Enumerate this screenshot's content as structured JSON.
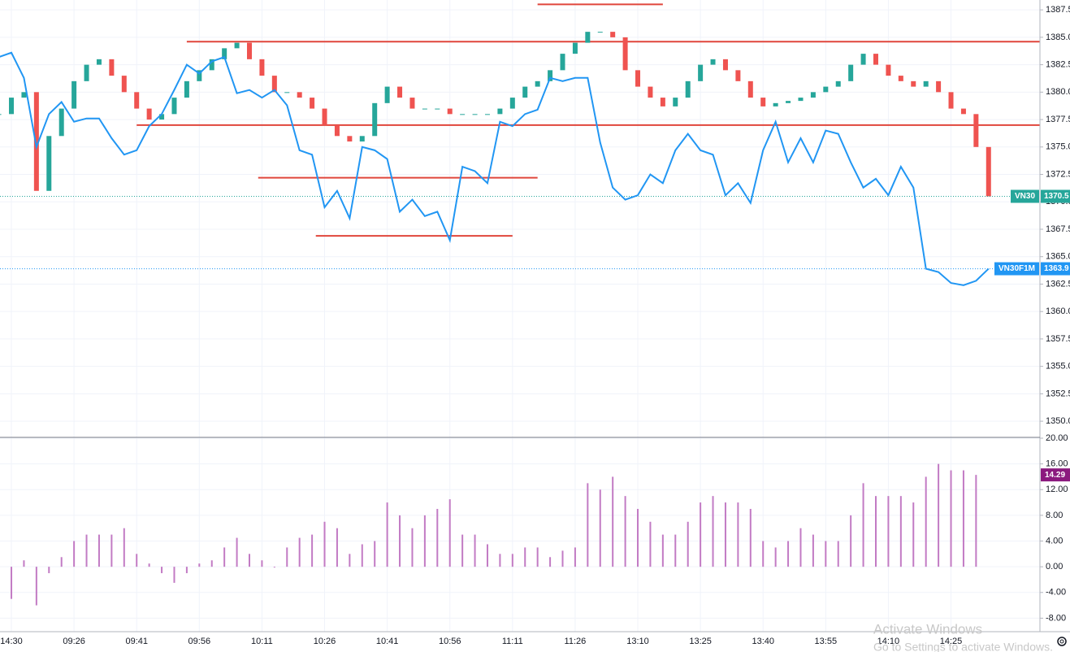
{
  "chart_data": [
    {
      "type": "candlestick",
      "categories": [
        null,
        "14:30",
        null,
        null,
        null,
        null,
        "09:26",
        null,
        null,
        null,
        null,
        "09:41",
        null,
        null,
        null,
        null,
        "09:56",
        null,
        null,
        null,
        null,
        "10:11",
        null,
        null,
        null,
        null,
        "10:26",
        null,
        null,
        null,
        null,
        "10:41",
        null,
        null,
        null,
        null,
        "10:56",
        null,
        null,
        null,
        null,
        "11:11",
        null,
        null,
        null,
        null,
        "11:26",
        null,
        null,
        null,
        null,
        "13:10",
        null,
        null,
        null,
        null,
        "13:25",
        null,
        null,
        null,
        null,
        "13:40",
        null,
        null,
        null,
        null,
        "13:55",
        null,
        null,
        null,
        null,
        "14:10",
        null,
        null,
        null,
        null,
        "14:25",
        null,
        null,
        null
      ],
      "series": [
        {
          "name": "VN30",
          "kind": "candles",
          "up_color": "#26a69a",
          "down_color": "#ef5350",
          "values": [
            1378,
            1379.5,
            1380,
            1371,
            1376,
            1378.5,
            1381,
            1382.5,
            1383,
            1381.5,
            1380,
            1378.5,
            1377.5,
            1378,
            1379.5,
            1381,
            1382,
            1383,
            1384,
            1384.5,
            1383,
            1381.5,
            1380,
            1380,
            1379.5,
            1378.5,
            1377,
            1376,
            1375.5,
            1376,
            1379,
            1380.5,
            1379.5,
            1378.5,
            1378.5,
            1378.5,
            1378,
            1378,
            1378,
            1378,
            1378.5,
            1379.5,
            1380.5,
            1381,
            1382,
            1383.5,
            1384.5,
            1385.5,
            1385.5,
            1385,
            1382,
            1380.5,
            1379.5,
            1378.7,
            1379.5,
            1381,
            1382.5,
            1383,
            1382,
            1381,
            1379.5,
            1378.7,
            1379,
            1379.2,
            1379.5,
            1380,
            1380.5,
            1381,
            1382.5,
            1383.5,
            1382.5,
            1381.5,
            1381,
            1380.5,
            1381,
            1380,
            1378.5,
            1378,
            1375,
            1370.5
          ]
        },
        {
          "name": "VN30F1M",
          "kind": "line",
          "color": "#2196f3",
          "values": [
            1383.2,
            1383.6,
            1381.3,
            1375,
            1378,
            1379.1,
            1377.3,
            1377.6,
            1377.6,
            1375.8,
            1374.3,
            1374.7,
            1376.9,
            1378,
            1380.2,
            1382.5,
            1381.7,
            1382.8,
            1383.2,
            1379.9,
            1380.2,
            1379.5,
            1380.2,
            1378.8,
            1374.7,
            1374.3,
            1369.5,
            1371,
            1368.5,
            1375,
            1374.7,
            1373.9,
            1369.1,
            1370.2,
            1368.7,
            1369.1,
            1366.5,
            1373.2,
            1372.8,
            1371.7,
            1377.3,
            1376.9,
            1378,
            1378.4,
            1381.3,
            1381,
            1381.3,
            1381.3,
            1375.4,
            1371.3,
            1370.2,
            1370.6,
            1372.5,
            1371.7,
            1374.7,
            1376.2,
            1374.7,
            1374.3,
            1370.6,
            1371.7,
            1369.9,
            1374.7,
            1377.3,
            1373.6,
            1375.8,
            1373.6,
            1376.5,
            1376.2,
            1373.6,
            1371.3,
            1372.1,
            1370.6,
            1373.2,
            1371.3,
            1363.9,
            1363.6,
            1362.6,
            1362.4,
            1362.8,
            1363.9
          ]
        }
      ],
      "levels": [
        {
          "value": 1388,
          "from": 43,
          "to": 53,
          "color": "#e0463c"
        },
        {
          "value": 1384.6,
          "from": 15,
          "to": 83.1,
          "color": "#e0463c"
        },
        {
          "value": 1377,
          "from": 11,
          "to": 83.1,
          "color": "#e0463c"
        },
        {
          "value": 1372.2,
          "from": 20.7,
          "to": 43,
          "color": "#e0463c"
        },
        {
          "value": 1366.9,
          "from": 25.3,
          "to": 41,
          "color": "#e0463c"
        }
      ],
      "ylim": [
        1348.6,
        1388.4
      ],
      "yticks": [
        {
          "value": 1350,
          "label": "1350.00"
        },
        {
          "value": 1352.5,
          "label": "1352.50"
        },
        {
          "value": 1355,
          "label": "1355.00"
        },
        {
          "value": 1357.5,
          "label": "1357.50"
        },
        {
          "value": 1360,
          "label": "1360.00"
        },
        {
          "value": 1362.5,
          "label": "1362.50"
        },
        {
          "value": 1365,
          "label": "1365.00"
        },
        {
          "value": 1367.5,
          "label": "1367.50"
        },
        {
          "value": 1370,
          "label": "1370.00"
        },
        {
          "value": 1372.5,
          "label": "1372.50"
        },
        {
          "value": 1375,
          "label": "1375.00"
        },
        {
          "value": 1377.5,
          "label": "1377.50"
        },
        {
          "value": 1380,
          "label": "1380.00"
        },
        {
          "value": 1382.5,
          "label": "1382.50"
        },
        {
          "value": 1385,
          "label": "1385.00"
        },
        {
          "value": 1387.5,
          "label": "1387.50"
        }
      ],
      "grid": true
    },
    {
      "type": "histogram",
      "color": "#c27bc4",
      "tag_color": "#8b1a7e",
      "values": [
        -5,
        -5,
        1,
        -6,
        -1,
        1.5,
        4,
        5,
        5,
        5,
        6,
        2,
        0.5,
        -1,
        -2.5,
        -1,
        0.5,
        1,
        3,
        4.5,
        2,
        1,
        0,
        3,
        4.5,
        5,
        7,
        6,
        2,
        3.5,
        4,
        10,
        8,
        6,
        8,
        9,
        10.5,
        5,
        5,
        3.5,
        2,
        2,
        3,
        3,
        1.5,
        2.5,
        3,
        13,
        12,
        14,
        11,
        9,
        7,
        5,
        5,
        7,
        10,
        11,
        10,
        10,
        9,
        4,
        3,
        4,
        6,
        5,
        4,
        4,
        8,
        13,
        11,
        11,
        11,
        10,
        14,
        16,
        15,
        15,
        14.29,
        null
      ],
      "value_labels": {
        "78": "14.29"
      },
      "ylim": [
        -10.1,
        20
      ],
      "yticks": [
        {
          "value": -8,
          "label": "-8.00"
        },
        {
          "value": -4,
          "label": "-4.00"
        },
        {
          "value": 0,
          "label": "0.00"
        },
        {
          "value": 4,
          "label": "4.00"
        },
        {
          "value": 8,
          "label": "8.00"
        },
        {
          "value": 12,
          "label": "12.00"
        },
        {
          "value": 16,
          "label": "16.00"
        },
        {
          "value": 20,
          "label": "20.00"
        }
      ],
      "grid": true
    }
  ],
  "watermark": {
    "line1": "Activate Windows",
    "line2": "Go to Settings to activate Windows."
  }
}
